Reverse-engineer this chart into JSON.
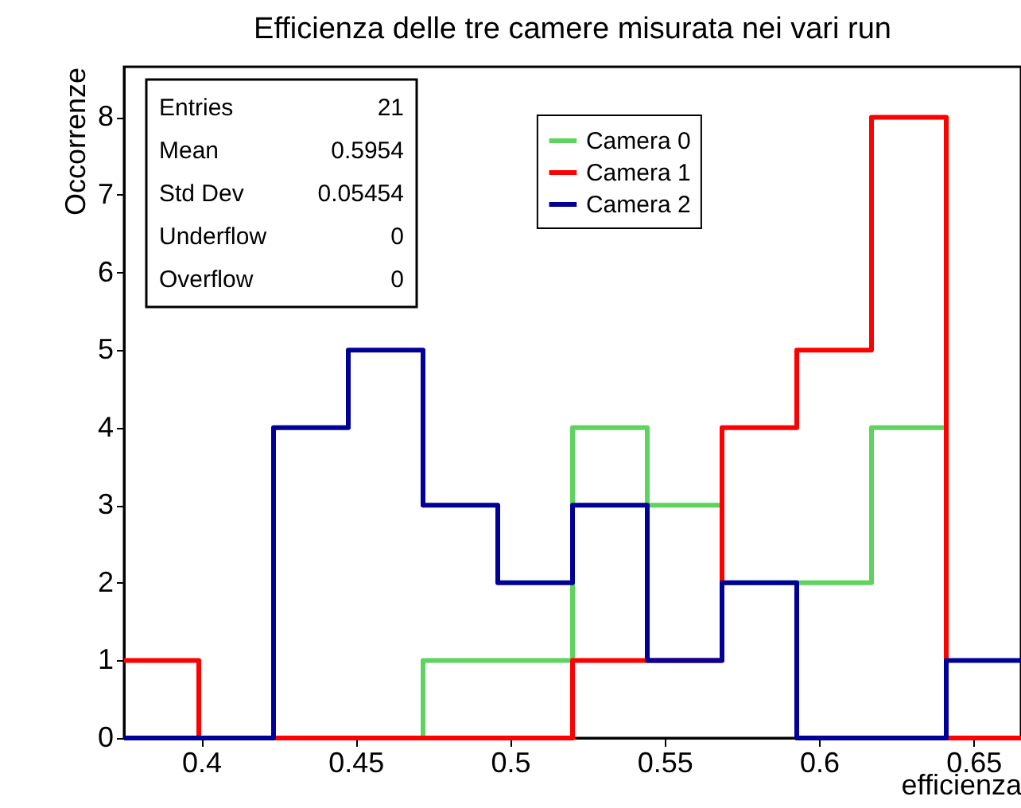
{
  "chart_data": {
    "type": "histogram",
    "title": "Efficienza delle tre camere misurata nei vari run",
    "xlabel": "efficienza",
    "ylabel": "Occorrenze",
    "bins": [
      0.375,
      0.3992,
      0.4234,
      0.4476,
      0.4718,
      0.496,
      0.5202,
      0.5444,
      0.5686,
      0.5928,
      0.617,
      0.6412,
      0.6654
    ],
    "series": [
      {
        "name": "Camera 0",
        "color": "#5fd35f",
        "values": [
          0,
          0,
          0,
          0,
          1,
          1,
          4,
          3,
          2,
          2,
          4,
          0
        ]
      },
      {
        "name": "Camera 1",
        "color": "#ff0000",
        "values": [
          1,
          0,
          0,
          0,
          0,
          0,
          1,
          1,
          4,
          5,
          8,
          0
        ]
      },
      {
        "name": "Camera 2",
        "color": "#000099",
        "values": [
          0,
          0,
          4,
          5,
          3,
          2,
          3,
          1,
          2,
          0,
          0,
          1
        ]
      }
    ],
    "xlim": [
      0.375,
      0.6654
    ],
    "ylim": [
      0,
      8.65
    ],
    "xticks": [
      0.4,
      0.45,
      0.5,
      0.55,
      0.6,
      0.65
    ],
    "yticks": [
      0,
      1,
      2,
      3,
      4,
      5,
      6,
      7,
      8
    ],
    "grid": false,
    "legend": "top",
    "annotations": [
      "Entries 21",
      "Mean 0.5954",
      "Std Dev 0.05454",
      "Underflow 0",
      "Overflow 0"
    ]
  }
}
